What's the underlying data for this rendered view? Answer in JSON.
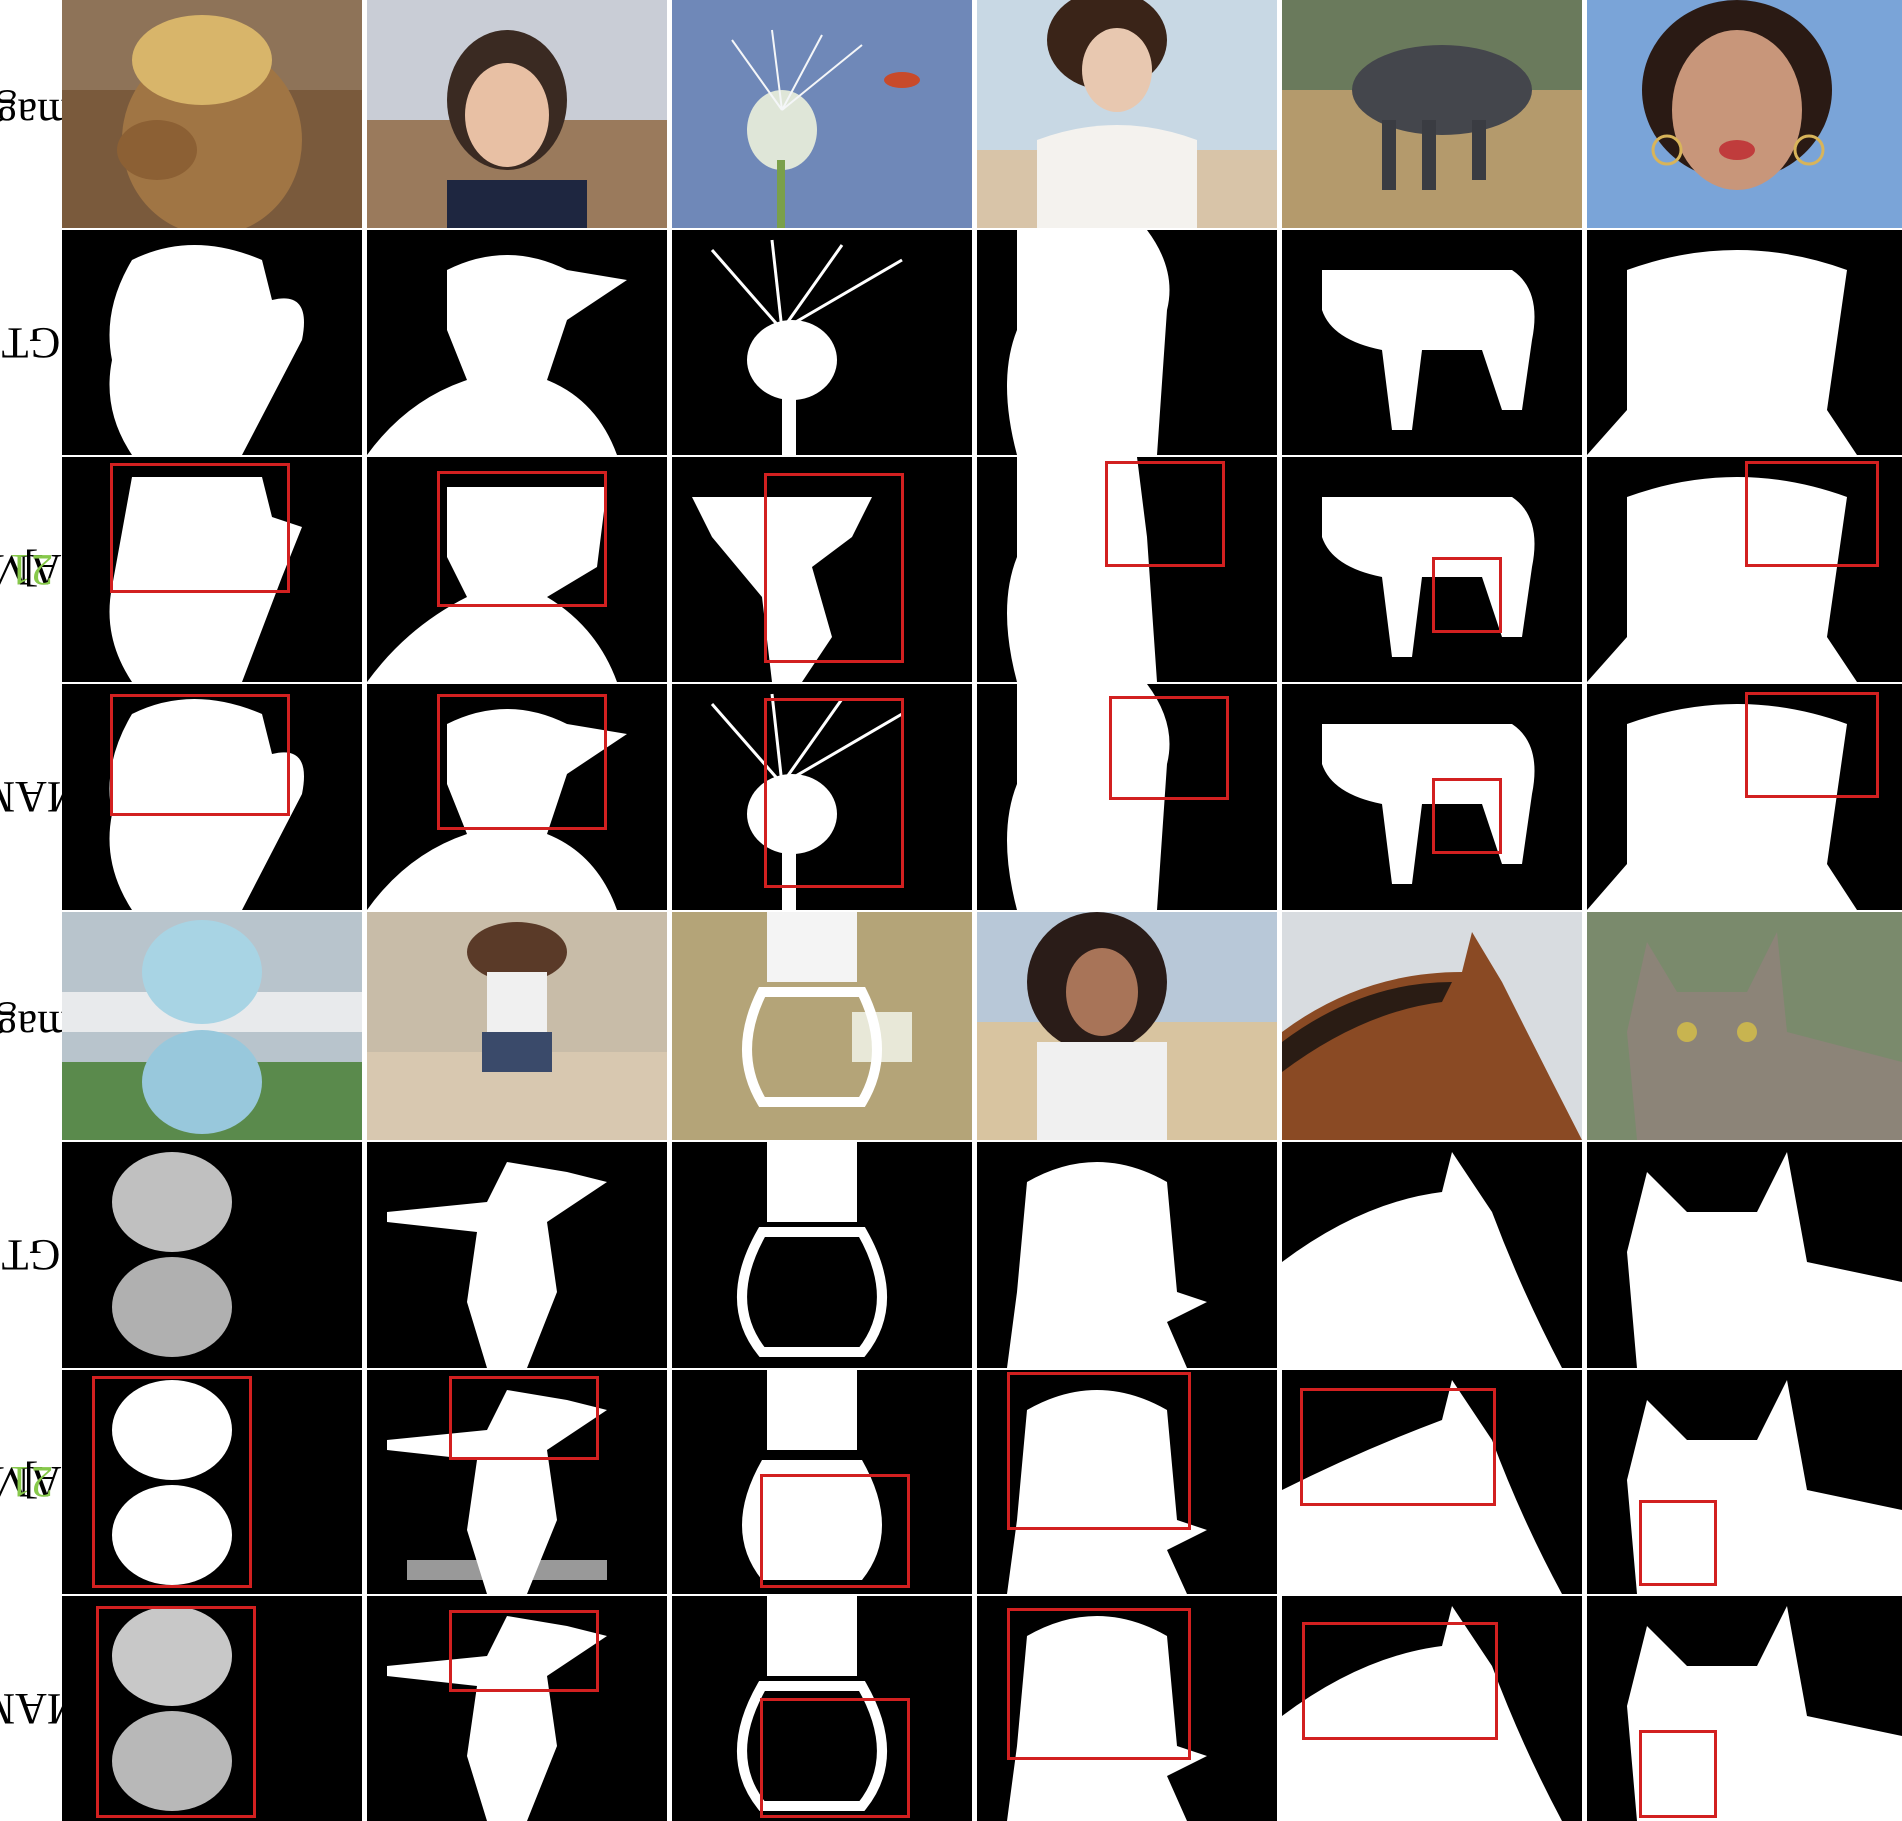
{
  "figure": {
    "rows": [
      {
        "label": "Image",
        "cite": "",
        "suffix": ""
      },
      {
        "label": "GT",
        "cite": "",
        "suffix": ""
      },
      {
        "label": "SAM[",
        "cite": "21",
        "suffix": "]"
      },
      {
        "label": "MAM",
        "cite": "",
        "suffix": ""
      },
      {
        "label": "Image",
        "cite": "",
        "suffix": ""
      },
      {
        "label": "GT",
        "cite": "",
        "suffix": ""
      },
      {
        "label": "SAM[",
        "cite": "21",
        "suffix": "]"
      },
      {
        "label": "MAM",
        "cite": "",
        "suffix": ""
      }
    ],
    "top_subjects": [
      "alpaca",
      "woman-glasses",
      "dandelion",
      "woman-white-dress",
      "wildebeest",
      "woman-hoop-earrings"
    ],
    "bottom_subjects": [
      "crystal-glass-ball",
      "jumping-girl",
      "light-bulb",
      "smiling-girl",
      "horse",
      "cat"
    ],
    "colors": {
      "highlight_box": "#d22020",
      "citation": "#86c84a",
      "mask_fg": "#ffffff",
      "mask_bg": "#000000"
    }
  }
}
